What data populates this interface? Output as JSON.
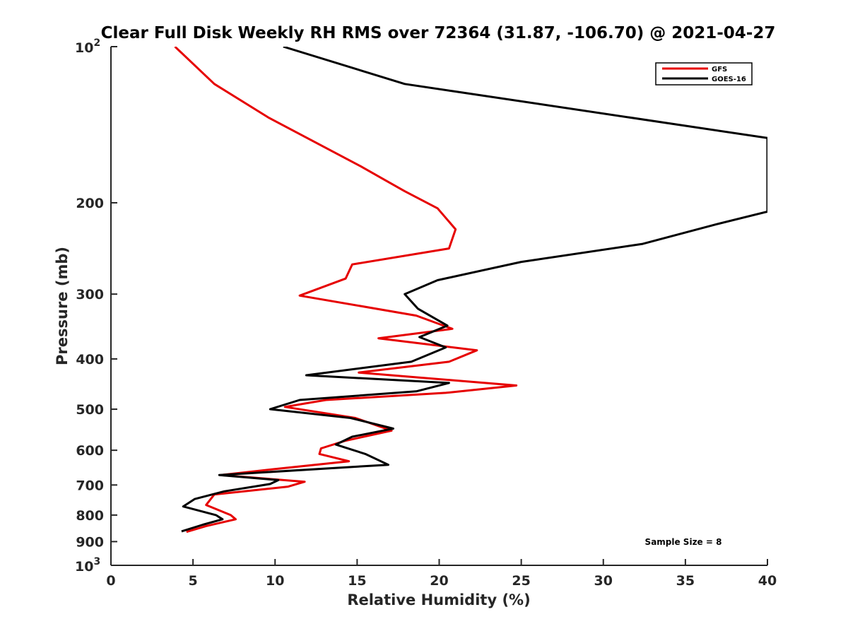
{
  "chart_data": {
    "type": "line",
    "title": "Clear Full Disk Weekly RH RMS over 72364 (31.87, -106.70) @ 2021-04-27",
    "xlabel": "Relative Humidity (%)",
    "ylabel": "Pressure (mb)",
    "xlim": [
      0,
      40
    ],
    "ylim": [
      100,
      1000
    ],
    "yscale": "log",
    "y_reversed": true,
    "grid": false,
    "legend_position": "top-right",
    "x_ticks": [
      "0",
      "5",
      "10",
      "15",
      "20",
      "25",
      "30",
      "35",
      "40"
    ],
    "y_ticks": [
      {
        "value": 200,
        "label": "200"
      },
      {
        "value": 300,
        "label": "300"
      },
      {
        "value": 400,
        "label": "400"
      },
      {
        "value": 500,
        "label": "500"
      },
      {
        "value": 600,
        "label": "600"
      },
      {
        "value": 700,
        "label": "700"
      },
      {
        "value": 800,
        "label": "800"
      },
      {
        "value": 900,
        "label": "900"
      }
    ],
    "y_tick_powers": [
      {
        "value": 100,
        "base": "10",
        "exp": "2"
      },
      {
        "value": 1000,
        "base": "10",
        "exp": "3"
      }
    ],
    "series": [
      {
        "name": "GFS",
        "color": "#e60000",
        "points": [
          [
            3.9,
            100
          ],
          [
            6.3,
            118
          ],
          [
            9.6,
            137
          ],
          [
            15.2,
            170
          ],
          [
            17.9,
            190
          ],
          [
            19.9,
            205
          ],
          [
            21.0,
            225
          ],
          [
            20.6,
            245
          ],
          [
            14.7,
            263
          ],
          [
            14.3,
            280
          ],
          [
            11.5,
            302
          ],
          [
            18.6,
            330
          ],
          [
            20.8,
            350
          ],
          [
            16.3,
            365
          ],
          [
            22.3,
            385
          ],
          [
            20.6,
            405
          ],
          [
            15.1,
            425
          ],
          [
            24.7,
            450
          ],
          [
            20.4,
            465
          ],
          [
            13.1,
            480
          ],
          [
            10.6,
            495
          ],
          [
            14.9,
            520
          ],
          [
            17.1,
            550
          ],
          [
            14.3,
            575
          ],
          [
            12.8,
            595
          ],
          [
            12.7,
            610
          ],
          [
            14.5,
            630
          ],
          [
            10.4,
            650
          ],
          [
            6.7,
            670
          ],
          [
            11.8,
            690
          ],
          [
            10.8,
            705
          ],
          [
            6.3,
            730
          ],
          [
            5.8,
            765
          ],
          [
            7.3,
            800
          ],
          [
            7.6,
            815
          ],
          [
            5.8,
            840
          ],
          [
            4.6,
            862
          ]
        ]
      },
      {
        "name": "GOES-16",
        "color": "#000000",
        "points": [
          [
            10.5,
            100
          ],
          [
            17.9,
            118
          ],
          [
            40.0,
            150
          ],
          [
            40.0,
            208
          ],
          [
            36.9,
            220
          ],
          [
            32.4,
            240
          ],
          [
            25.0,
            260
          ],
          [
            19.9,
            282
          ],
          [
            17.9,
            300
          ],
          [
            18.7,
            320
          ],
          [
            20.5,
            345
          ],
          [
            18.8,
            363
          ],
          [
            20.4,
            380
          ],
          [
            18.3,
            405
          ],
          [
            11.9,
            430
          ],
          [
            20.6,
            445
          ],
          [
            18.6,
            462
          ],
          [
            11.5,
            480
          ],
          [
            9.7,
            500
          ],
          [
            14.6,
            520
          ],
          [
            17.2,
            545
          ],
          [
            14.7,
            565
          ],
          [
            13.7,
            585
          ],
          [
            15.5,
            610
          ],
          [
            16.9,
            640
          ],
          [
            13.3,
            650
          ],
          [
            6.6,
            670
          ],
          [
            10.2,
            685
          ],
          [
            9.7,
            697
          ],
          [
            6.9,
            720
          ],
          [
            5.1,
            745
          ],
          [
            4.4,
            770
          ],
          [
            6.4,
            800
          ],
          [
            6.8,
            815
          ],
          [
            5.6,
            835
          ],
          [
            4.3,
            860
          ]
        ]
      }
    ],
    "annotation": "Sample Size = 8"
  }
}
